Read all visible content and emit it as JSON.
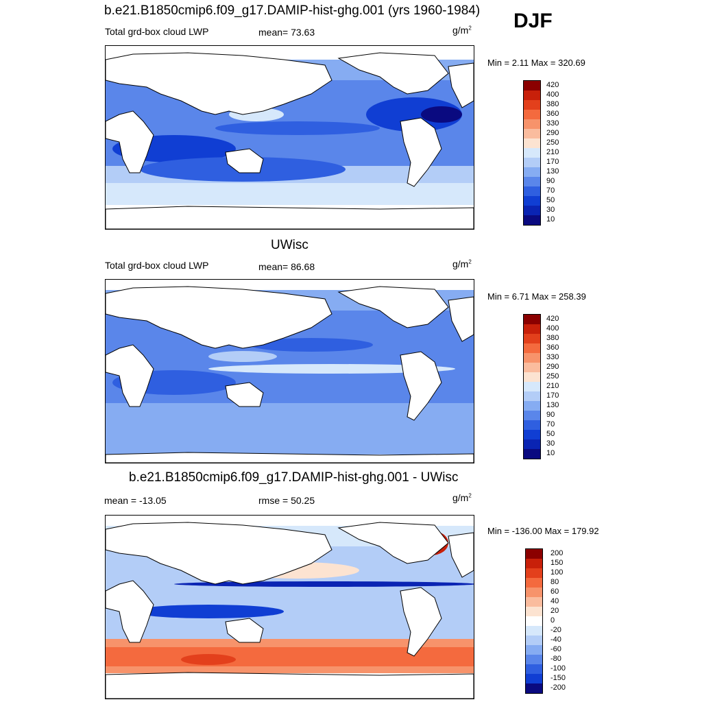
{
  "season": "DJF",
  "panels": [
    {
      "title": "b.e21.B1850cmip6.f09_g17.DAMIP-hist-ghg.001 (yrs 1960-1984)",
      "left_label": "Total grd-box cloud LWP",
      "center_label": "mean=  73.63",
      "unit": "g/m",
      "unit_sup": "2",
      "minmax": "Min =   2.11 Max = 320.69",
      "levels": [
        "420",
        "400",
        "380",
        "360",
        "330",
        "290",
        "250",
        "210",
        "170",
        "130",
        "90",
        "70",
        "50",
        "30",
        "10"
      ]
    },
    {
      "title": "UWisc",
      "left_label": "Total grd-box cloud LWP",
      "center_label": "mean=  86.68",
      "unit": "g/m",
      "unit_sup": "2",
      "minmax": "Min =   6.71 Max = 258.39",
      "levels": [
        "420",
        "400",
        "380",
        "360",
        "330",
        "290",
        "250",
        "210",
        "170",
        "130",
        "90",
        "70",
        "50",
        "30",
        "10"
      ]
    },
    {
      "title": "b.e21.B1850cmip6.f09_g17.DAMIP-hist-ghg.001 - UWisc",
      "left_label": "mean = -13.05",
      "center_label": "rmse =  50.25",
      "unit": "g/m",
      "unit_sup": "2",
      "minmax": "Min = -136.00 Max = 179.92",
      "levels": [
        "200",
        "150",
        "100",
        "80",
        "60",
        "40",
        "20",
        "0",
        "-20",
        "-40",
        "-60",
        "-80",
        "-100",
        "-150",
        "-200"
      ]
    }
  ],
  "colors": {
    "abs_scale": [
      "#8b0000",
      "#c8200a",
      "#e3401c",
      "#f46a3e",
      "#f7936b",
      "#fabc9e",
      "#fce3d1",
      "#d6e8fb",
      "#b3cdf7",
      "#86acf2",
      "#5a86ea",
      "#2f5fe0",
      "#103ed3",
      "#0a24b3",
      "#0a0a80"
    ],
    "diff_scale": [
      "#8b0000",
      "#c8200a",
      "#e3401c",
      "#f46a3e",
      "#f7936b",
      "#fabc9e",
      "#fce3d1",
      "#ffffff",
      "#d6e8fb",
      "#b3cdf7",
      "#86acf2",
      "#5a86ea",
      "#2f5fe0",
      "#103ed3",
      "#0a0a80"
    ],
    "land": "#ffffff",
    "coast": "#000000"
  }
}
